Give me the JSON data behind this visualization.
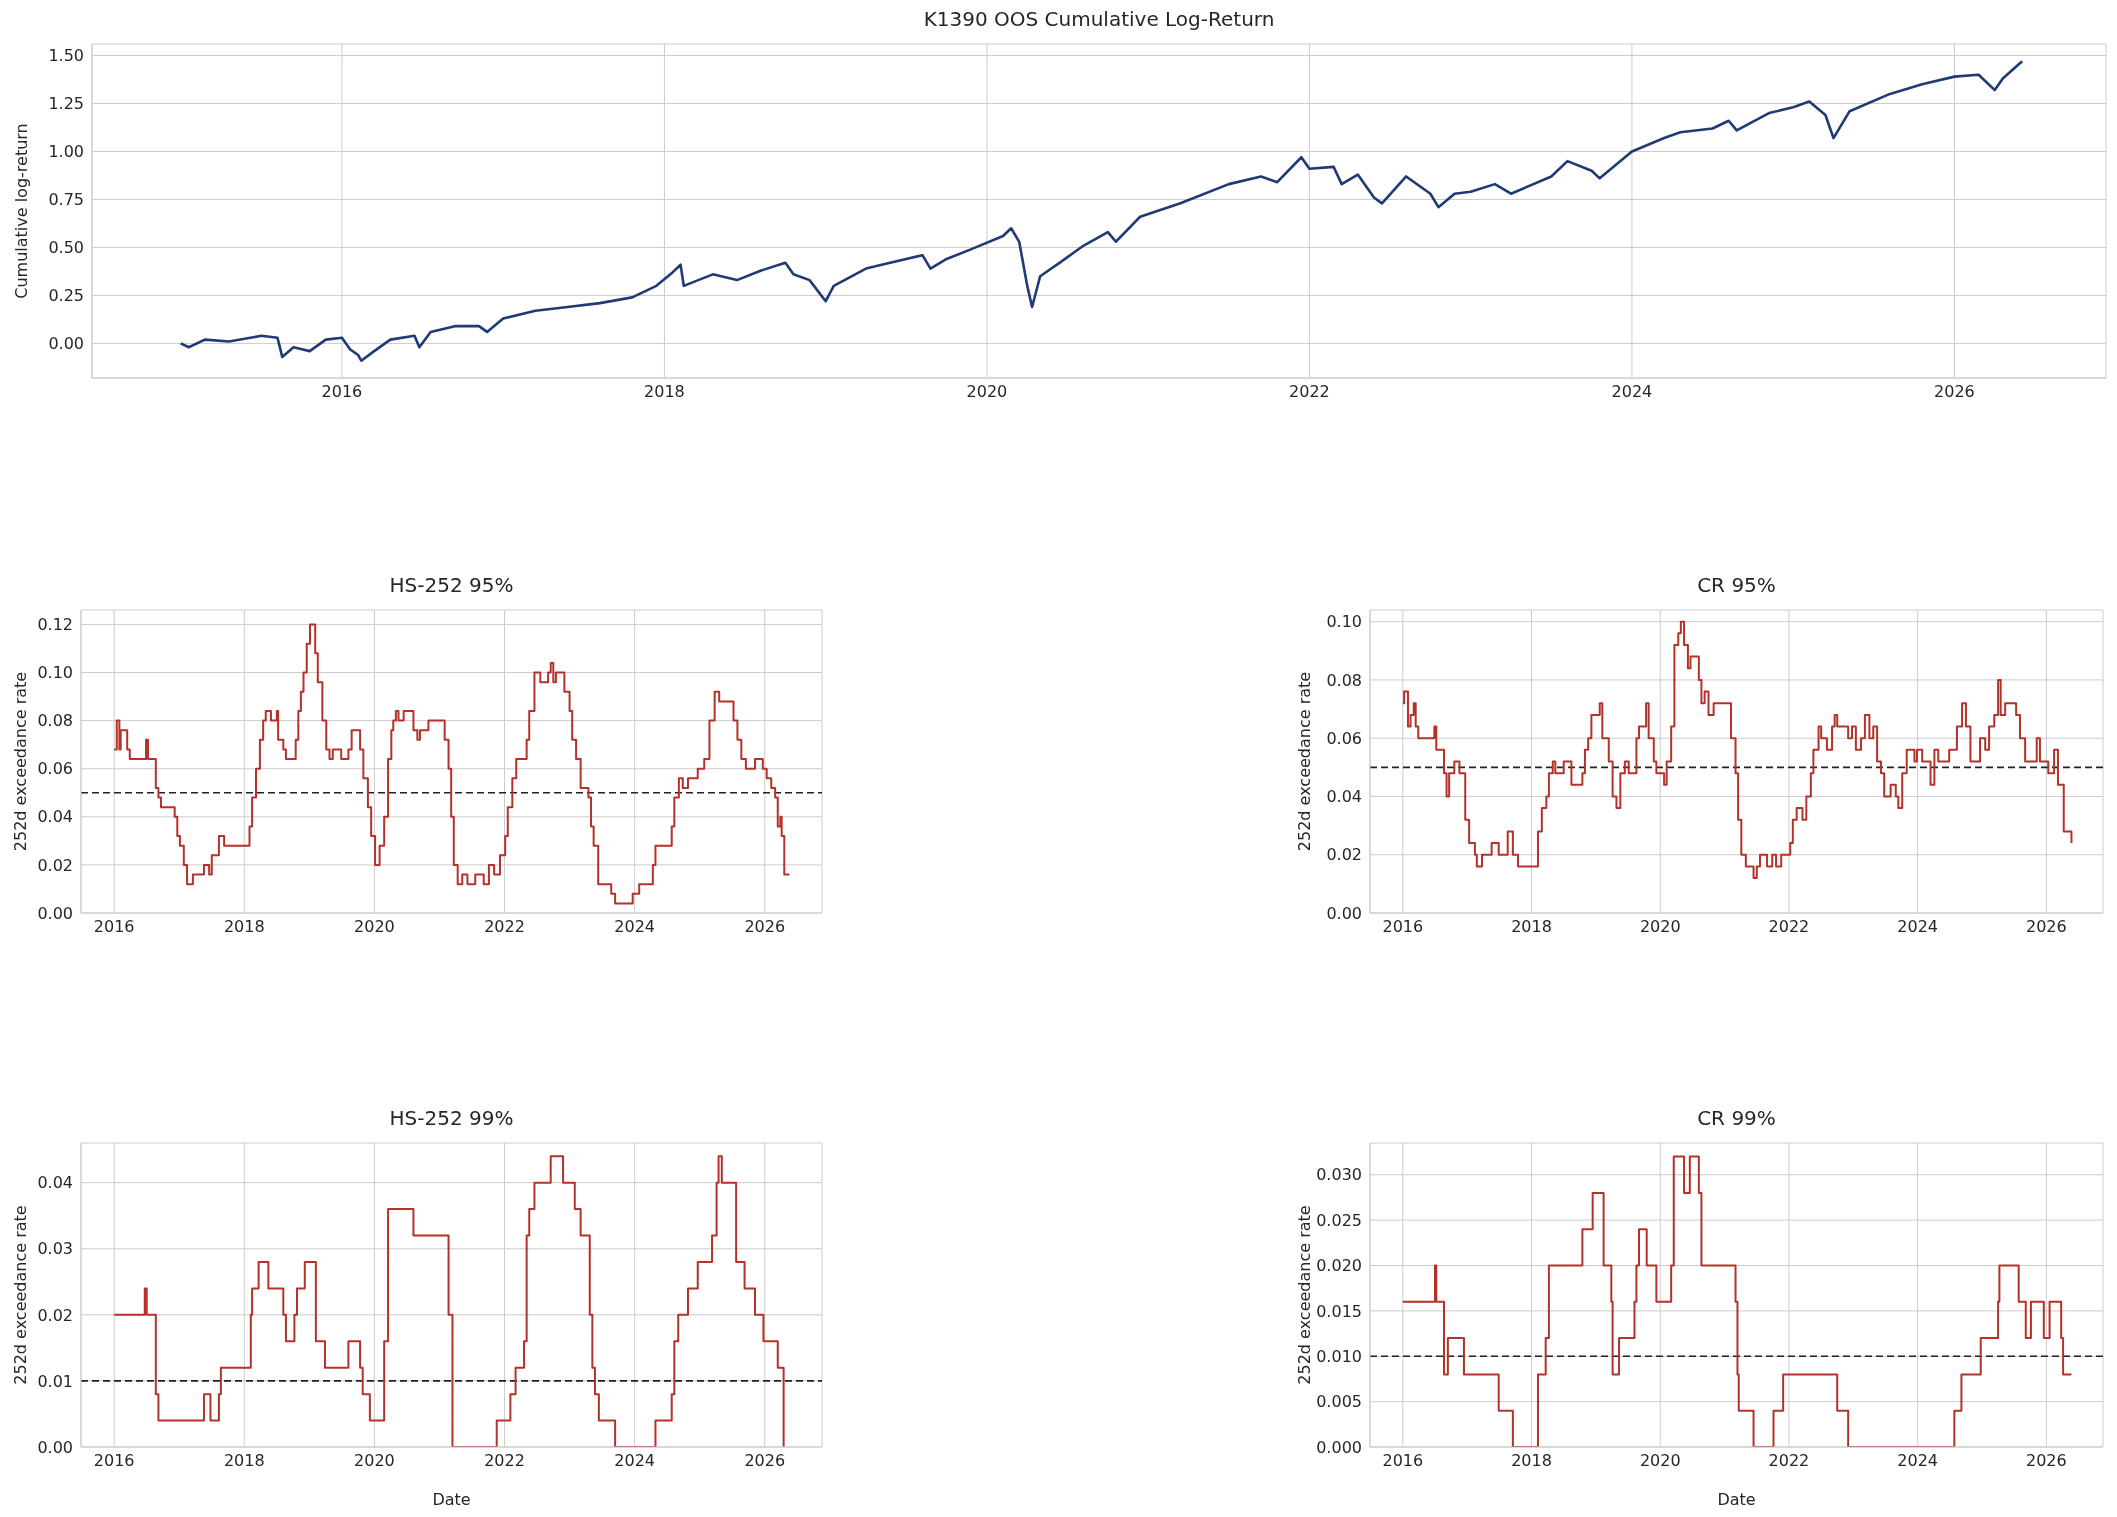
{
  "chart_data": [
    {
      "type": "line",
      "title": "K1390 OOS Cumulative Log-Return",
      "ylabel": "Cumulative log-return",
      "color": "#1f3a75",
      "grid": true,
      "xlim": [
        2014.45,
        2026.94
      ],
      "xticks": [
        2016,
        2018,
        2020,
        2022,
        2024,
        2026
      ],
      "ylim": [
        -0.18,
        1.56
      ],
      "yticks": [
        {
          "value": 0,
          "label": "0.00"
        },
        {
          "value": 0.25,
          "label": "0.25"
        },
        {
          "value": 0.5,
          "label": "0.50"
        },
        {
          "value": 0.75,
          "label": "0.75"
        },
        {
          "value": 1,
          "label": "1.00"
        },
        {
          "value": 1.25,
          "label": "1.25"
        },
        {
          "value": 1.5,
          "label": "1.50"
        }
      ],
      "x": [
        2015.0,
        2015.05,
        2015.15,
        2015.3,
        2015.5,
        2015.6,
        2015.63,
        2015.7,
        2015.8,
        2015.9,
        2016.0,
        2016.05,
        2016.1,
        2016.12,
        2016.2,
        2016.3,
        2016.45,
        2016.48,
        2016.55,
        2016.7,
        2016.85,
        2016.9,
        2017.0,
        2017.2,
        2017.4,
        2017.6,
        2017.8,
        2017.95,
        2018.05,
        2018.1,
        2018.12,
        2018.3,
        2018.45,
        2018.6,
        2018.75,
        2018.8,
        2018.9,
        2019.0,
        2019.05,
        2019.25,
        2019.4,
        2019.6,
        2019.65,
        2019.75,
        2019.9,
        2020.1,
        2020.15,
        2020.2,
        2020.25,
        2020.28,
        2020.33,
        2020.45,
        2020.6,
        2020.75,
        2020.8,
        2020.95,
        2021.2,
        2021.5,
        2021.7,
        2021.8,
        2021.95,
        2022.0,
        2022.15,
        2022.2,
        2022.3,
        2022.4,
        2022.45,
        2022.6,
        2022.75,
        2022.8,
        2022.9,
        2023.0,
        2023.15,
        2023.25,
        2023.5,
        2023.6,
        2023.75,
        2023.8,
        2024.0,
        2024.2,
        2024.3,
        2024.5,
        2024.6,
        2024.65,
        2024.85,
        2025.0,
        2025.1,
        2025.2,
        2025.25,
        2025.35,
        2025.6,
        2025.8,
        2026.0,
        2026.15,
        2026.25,
        2026.3,
        2026.38,
        2026.42
      ],
      "values": [
        0.0,
        -0.02,
        0.02,
        0.01,
        0.04,
        0.03,
        -0.07,
        -0.02,
        -0.04,
        0.02,
        0.03,
        -0.03,
        -0.06,
        -0.09,
        -0.04,
        0.02,
        0.04,
        -0.02,
        0.06,
        0.09,
        0.09,
        0.06,
        0.13,
        0.17,
        0.19,
        0.21,
        0.24,
        0.3,
        0.37,
        0.41,
        0.3,
        0.36,
        0.33,
        0.38,
        0.42,
        0.36,
        0.33,
        0.22,
        0.3,
        0.39,
        0.42,
        0.46,
        0.39,
        0.44,
        0.49,
        0.56,
        0.6,
        0.53,
        0.3,
        0.19,
        0.35,
        0.42,
        0.51,
        0.58,
        0.53,
        0.66,
        0.73,
        0.83,
        0.87,
        0.84,
        0.97,
        0.91,
        0.92,
        0.83,
        0.88,
        0.76,
        0.73,
        0.87,
        0.78,
        0.71,
        0.78,
        0.79,
        0.83,
        0.78,
        0.87,
        0.95,
        0.9,
        0.86,
        1.0,
        1.07,
        1.1,
        1.12,
        1.16,
        1.11,
        1.2,
        1.23,
        1.26,
        1.19,
        1.07,
        1.21,
        1.3,
        1.35,
        1.39,
        1.4,
        1.32,
        1.38,
        1.44,
        1.47
      ]
    },
    {
      "type": "step",
      "title": "HS-252 95%",
      "ylabel": "252d exceedance rate",
      "color": "#b5322a",
      "grid": true,
      "xlim": [
        2015.49,
        2026.88
      ],
      "xticks": [
        2016,
        2018,
        2020,
        2022,
        2024,
        2026
      ],
      "ylim": [
        0,
        0.126
      ],
      "yticks": [
        {
          "value": 0,
          "label": "0.00"
        },
        {
          "value": 0.02,
          "label": "0.02"
        },
        {
          "value": 0.04,
          "label": "0.04"
        },
        {
          "value": 0.06,
          "label": "0.06"
        },
        {
          "value": 0.08,
          "label": "0.08"
        },
        {
          "value": 0.1,
          "label": "0.10"
        },
        {
          "value": 0.12,
          "label": "0.12"
        }
      ],
      "ref_lines": [
        {
          "axis": "y",
          "value": 0.05,
          "color": "#222222",
          "line_style": "dashed"
        }
      ],
      "x": [
        2016.0,
        2016.04,
        2016.08,
        2016.1,
        2016.2,
        2016.24,
        2016.49,
        2016.52,
        2016.64,
        2016.68,
        2016.72,
        2016.93,
        2016.97,
        2017.01,
        2017.07,
        2017.12,
        2017.21,
        2017.38,
        2017.46,
        2017.5,
        2017.61,
        2017.69,
        2018.08,
        2018.12,
        2018.18,
        2018.24,
        2018.29,
        2018.33,
        2018.41,
        2018.5,
        2018.52,
        2018.6,
        2018.64,
        2018.79,
        2018.83,
        2018.87,
        2018.91,
        2018.96,
        2019.01,
        2019.09,
        2019.13,
        2019.2,
        2019.26,
        2019.31,
        2019.36,
        2019.49,
        2019.6,
        2019.65,
        2019.78,
        2019.83,
        2019.9,
        2019.95,
        2020.01,
        2020.08,
        2020.15,
        2020.21,
        2020.26,
        2020.29,
        2020.33,
        2020.37,
        2020.45,
        2020.6,
        2020.66,
        2020.7,
        2020.83,
        2021.08,
        2021.14,
        2021.18,
        2021.22,
        2021.28,
        2021.35,
        2021.43,
        2021.55,
        2021.68,
        2021.76,
        2021.84,
        2021.93,
        2022.01,
        2022.05,
        2022.12,
        2022.18,
        2022.34,
        2022.38,
        2022.46,
        2022.55,
        2022.67,
        2022.71,
        2022.75,
        2022.79,
        2022.92,
        2023.0,
        2023.04,
        2023.1,
        2023.17,
        2023.29,
        2023.33,
        2023.37,
        2023.44,
        2023.64,
        2023.7,
        2023.97,
        2024.07,
        2024.28,
        2024.32,
        2024.57,
        2024.61,
        2024.68,
        2024.74,
        2024.82,
        2024.97,
        2025.07,
        2025.15,
        2025.23,
        2025.3,
        2025.52,
        2025.58,
        2025.64,
        2025.71,
        2025.85,
        2025.97,
        2026.03,
        2026.1,
        2026.16,
        2026.2,
        2026.24,
        2026.26,
        2026.3,
        2026.38
      ],
      "values": [
        0.068,
        0.08,
        0.068,
        0.076,
        0.068,
        0.064,
        0.072,
        0.064,
        0.052,
        0.048,
        0.044,
        0.04,
        0.032,
        0.028,
        0.02,
        0.012,
        0.016,
        0.02,
        0.016,
        0.024,
        0.032,
        0.028,
        0.036,
        0.048,
        0.06,
        0.072,
        0.08,
        0.084,
        0.08,
        0.084,
        0.072,
        0.068,
        0.064,
        0.072,
        0.084,
        0.092,
        0.1,
        0.112,
        0.12,
        0.108,
        0.096,
        0.08,
        0.068,
        0.064,
        0.068,
        0.064,
        0.068,
        0.076,
        0.068,
        0.056,
        0.044,
        0.032,
        0.02,
        0.028,
        0.04,
        0.064,
        0.076,
        0.08,
        0.084,
        0.08,
        0.084,
        0.076,
        0.072,
        0.076,
        0.08,
        0.072,
        0.06,
        0.04,
        0.02,
        0.012,
        0.016,
        0.012,
        0.016,
        0.012,
        0.02,
        0.016,
        0.024,
        0.032,
        0.044,
        0.056,
        0.064,
        0.072,
        0.084,
        0.1,
        0.096,
        0.1,
        0.104,
        0.096,
        0.1,
        0.092,
        0.084,
        0.072,
        0.064,
        0.052,
        0.048,
        0.036,
        0.028,
        0.012,
        0.008,
        0.004,
        0.008,
        0.012,
        0.02,
        0.028,
        0.036,
        0.048,
        0.056,
        0.052,
        0.056,
        0.06,
        0.064,
        0.08,
        0.092,
        0.088,
        0.08,
        0.072,
        0.064,
        0.06,
        0.064,
        0.06,
        0.056,
        0.052,
        0.048,
        0.036,
        0.04,
        0.032,
        0.016,
        0.016
      ]
    },
    {
      "type": "step",
      "title": "CR 95%",
      "ylabel": "252d exceedance rate",
      "color": "#b5322a",
      "grid": true,
      "xlim": [
        2015.49,
        2026.88
      ],
      "xticks": [
        2016,
        2018,
        2020,
        2022,
        2024,
        2026
      ],
      "ylim": [
        0,
        0.104
      ],
      "yticks": [
        {
          "value": 0,
          "label": "0.00"
        },
        {
          "value": 0.02,
          "label": "0.02"
        },
        {
          "value": 0.04,
          "label": "0.04"
        },
        {
          "value": 0.06,
          "label": "0.06"
        },
        {
          "value": 0.08,
          "label": "0.08"
        },
        {
          "value": 0.1,
          "label": "0.10"
        }
      ],
      "ref_lines": [
        {
          "axis": "y",
          "value": 0.05,
          "color": "#222222",
          "line_style": "dashed"
        }
      ],
      "x": [
        2016.0,
        2016.02,
        2016.08,
        2016.12,
        2016.17,
        2016.2,
        2016.24,
        2016.49,
        2016.52,
        2016.64,
        2016.68,
        2016.72,
        2016.8,
        2016.88,
        2016.97,
        2017.03,
        2017.12,
        2017.15,
        2017.23,
        2017.38,
        2017.49,
        2017.63,
        2017.71,
        2017.79,
        2018.1,
        2018.16,
        2018.23,
        2018.27,
        2018.33,
        2018.37,
        2018.5,
        2018.62,
        2018.79,
        2018.83,
        2018.88,
        2018.93,
        2019.06,
        2019.1,
        2019.2,
        2019.26,
        2019.32,
        2019.38,
        2019.45,
        2019.51,
        2019.63,
        2019.67,
        2019.78,
        2019.82,
        2019.9,
        2019.94,
        2020.06,
        2020.1,
        2020.17,
        2020.22,
        2020.28,
        2020.32,
        2020.37,
        2020.43,
        2020.47,
        2020.6,
        2020.64,
        2020.69,
        2020.75,
        2020.83,
        2021.1,
        2021.17,
        2021.21,
        2021.26,
        2021.33,
        2021.45,
        2021.5,
        2021.55,
        2021.66,
        2021.74,
        2021.8,
        2021.88,
        2022.02,
        2022.06,
        2022.12,
        2022.21,
        2022.27,
        2022.34,
        2022.38,
        2022.46,
        2022.5,
        2022.59,
        2022.67,
        2022.71,
        2022.75,
        2022.92,
        2022.98,
        2023.04,
        2023.12,
        2023.18,
        2023.25,
        2023.31,
        2023.37,
        2023.43,
        2023.48,
        2023.58,
        2023.66,
        2023.7,
        2023.76,
        2023.83,
        2023.95,
        2023.99,
        2024.07,
        2024.2,
        2024.26,
        2024.32,
        2024.49,
        2024.61,
        2024.69,
        2024.75,
        2024.82,
        2024.97,
        2025.05,
        2025.11,
        2025.19,
        2025.25,
        2025.29,
        2025.36,
        2025.53,
        2025.59,
        2025.67,
        2025.85,
        2025.9,
        2026.03,
        2026.12,
        2026.18,
        2026.27,
        2026.39
      ],
      "values": [
        0.072,
        0.076,
        0.064,
        0.068,
        0.072,
        0.064,
        0.06,
        0.064,
        0.056,
        0.048,
        0.04,
        0.048,
        0.052,
        0.048,
        0.032,
        0.024,
        0.02,
        0.016,
        0.02,
        0.024,
        0.02,
        0.028,
        0.02,
        0.016,
        0.028,
        0.036,
        0.04,
        0.048,
        0.052,
        0.048,
        0.052,
        0.044,
        0.048,
        0.056,
        0.06,
        0.068,
        0.072,
        0.06,
        0.052,
        0.04,
        0.036,
        0.048,
        0.052,
        0.048,
        0.06,
        0.064,
        0.072,
        0.06,
        0.052,
        0.048,
        0.044,
        0.052,
        0.064,
        0.092,
        0.096,
        0.1,
        0.092,
        0.084,
        0.088,
        0.08,
        0.072,
        0.076,
        0.068,
        0.072,
        0.06,
        0.048,
        0.032,
        0.02,
        0.016,
        0.012,
        0.016,
        0.02,
        0.016,
        0.02,
        0.016,
        0.02,
        0.024,
        0.032,
        0.036,
        0.032,
        0.04,
        0.048,
        0.056,
        0.064,
        0.06,
        0.056,
        0.064,
        0.068,
        0.064,
        0.06,
        0.064,
        0.056,
        0.06,
        0.068,
        0.06,
        0.064,
        0.052,
        0.048,
        0.04,
        0.044,
        0.04,
        0.036,
        0.048,
        0.056,
        0.052,
        0.056,
        0.052,
        0.044,
        0.056,
        0.052,
        0.056,
        0.064,
        0.072,
        0.064,
        0.052,
        0.06,
        0.056,
        0.064,
        0.068,
        0.08,
        0.068,
        0.072,
        0.068,
        0.06,
        0.052,
        0.06,
        0.052,
        0.048,
        0.056,
        0.044,
        0.028,
        0.024
      ]
    },
    {
      "type": "step",
      "title": "HS-252 99%",
      "ylabel": "252d exceedance rate",
      "xlabel": "Date",
      "color": "#b5322a",
      "grid": true,
      "xlim": [
        2015.49,
        2026.88
      ],
      "xticks": [
        2016,
        2018,
        2020,
        2022,
        2024,
        2026
      ],
      "ylim": [
        0,
        0.046
      ],
      "yticks": [
        {
          "value": 0,
          "label": "0.00"
        },
        {
          "value": 0.01,
          "label": "0.01"
        },
        {
          "value": 0.02,
          "label": "0.02"
        },
        {
          "value": 0.03,
          "label": "0.03"
        },
        {
          "value": 0.04,
          "label": "0.04"
        }
      ],
      "ref_lines": [
        {
          "axis": "y",
          "value": 0.01,
          "color": "#222222",
          "line_style": "dashed"
        }
      ],
      "x": [
        2016.0,
        2016.47,
        2016.5,
        2016.64,
        2016.68,
        2017.38,
        2017.48,
        2017.61,
        2017.64,
        2018.1,
        2018.12,
        2018.22,
        2018.37,
        2018.6,
        2018.64,
        2018.77,
        2018.81,
        2018.93,
        2019.1,
        2019.24,
        2019.6,
        2019.78,
        2019.82,
        2019.93,
        2020.15,
        2020.21,
        2020.6,
        2021.14,
        2021.2,
        2021.88,
        2022.09,
        2022.17,
        2022.3,
        2022.34,
        2022.38,
        2022.46,
        2022.71,
        2022.9,
        2023.08,
        2023.17,
        2023.31,
        2023.35,
        2023.39,
        2023.45,
        2023.7,
        2024.32,
        2024.57,
        2024.61,
        2024.67,
        2024.82,
        2024.97,
        2025.19,
        2025.26,
        2025.29,
        2025.34,
        2025.56,
        2025.69,
        2025.85,
        2025.98,
        2026.2,
        2026.29
      ],
      "values": [
        0.02,
        0.024,
        0.02,
        0.008,
        0.004,
        0.008,
        0.004,
        0.008,
        0.012,
        0.02,
        0.024,
        0.028,
        0.024,
        0.02,
        0.016,
        0.02,
        0.024,
        0.028,
        0.016,
        0.012,
        0.016,
        0.012,
        0.008,
        0.004,
        0.016,
        0.036,
        0.032,
        0.02,
        0.0,
        0.004,
        0.008,
        0.012,
        0.016,
        0.032,
        0.036,
        0.04,
        0.044,
        0.04,
        0.036,
        0.032,
        0.02,
        0.012,
        0.008,
        0.004,
        0.0,
        0.004,
        0.008,
        0.016,
        0.02,
        0.024,
        0.028,
        0.032,
        0.04,
        0.044,
        0.04,
        0.028,
        0.024,
        0.02,
        0.016,
        0.012,
        0.0
      ]
    },
    {
      "type": "step",
      "title": "CR 99%",
      "ylabel": "252d exceedance rate",
      "xlabel": "Date",
      "color": "#b5322a",
      "grid": true,
      "xlim": [
        2015.49,
        2026.88
      ],
      "xticks": [
        2016,
        2018,
        2020,
        2022,
        2024,
        2026
      ],
      "ylim": [
        0,
        0.0335
      ],
      "yticks": [
        {
          "value": 0,
          "label": "0.000"
        },
        {
          "value": 0.005,
          "label": "0.005"
        },
        {
          "value": 0.01,
          "label": "0.010"
        },
        {
          "value": 0.015,
          "label": "0.015"
        },
        {
          "value": 0.02,
          "label": "0.020"
        },
        {
          "value": 0.025,
          "label": "0.025"
        },
        {
          "value": 0.03,
          "label": "0.030"
        }
      ],
      "ref_lines": [
        {
          "axis": "y",
          "value": 0.01,
          "color": "#222222",
          "line_style": "dashed"
        }
      ],
      "x": [
        2016.0,
        2016.5,
        2016.52,
        2016.64,
        2016.7,
        2016.95,
        2017.49,
        2017.71,
        2018.1,
        2018.22,
        2018.27,
        2018.79,
        2018.95,
        2019.12,
        2019.24,
        2019.26,
        2019.36,
        2019.6,
        2019.63,
        2019.67,
        2019.79,
        2019.94,
        2020.17,
        2020.21,
        2020.37,
        2020.46,
        2020.6,
        2020.64,
        2021.17,
        2021.2,
        2021.22,
        2021.45,
        2021.76,
        2021.91,
        2022.75,
        2022.92,
        2024.57,
        2024.68,
        2024.98,
        2025.25,
        2025.27,
        2025.57,
        2025.68,
        2025.76,
        2025.96,
        2026.05,
        2026.23,
        2026.26,
        2026.39
      ],
      "values": [
        0.016,
        0.02,
        0.016,
        0.008,
        0.012,
        0.008,
        0.004,
        0.0,
        0.008,
        0.012,
        0.02,
        0.024,
        0.028,
        0.02,
        0.016,
        0.008,
        0.012,
        0.016,
        0.02,
        0.024,
        0.02,
        0.016,
        0.02,
        0.032,
        0.028,
        0.032,
        0.028,
        0.02,
        0.016,
        0.008,
        0.004,
        0.0,
        0.004,
        0.008,
        0.004,
        0.0,
        0.004,
        0.008,
        0.012,
        0.016,
        0.02,
        0.016,
        0.012,
        0.016,
        0.012,
        0.016,
        0.012,
        0.008,
        0.008
      ]
    }
  ]
}
